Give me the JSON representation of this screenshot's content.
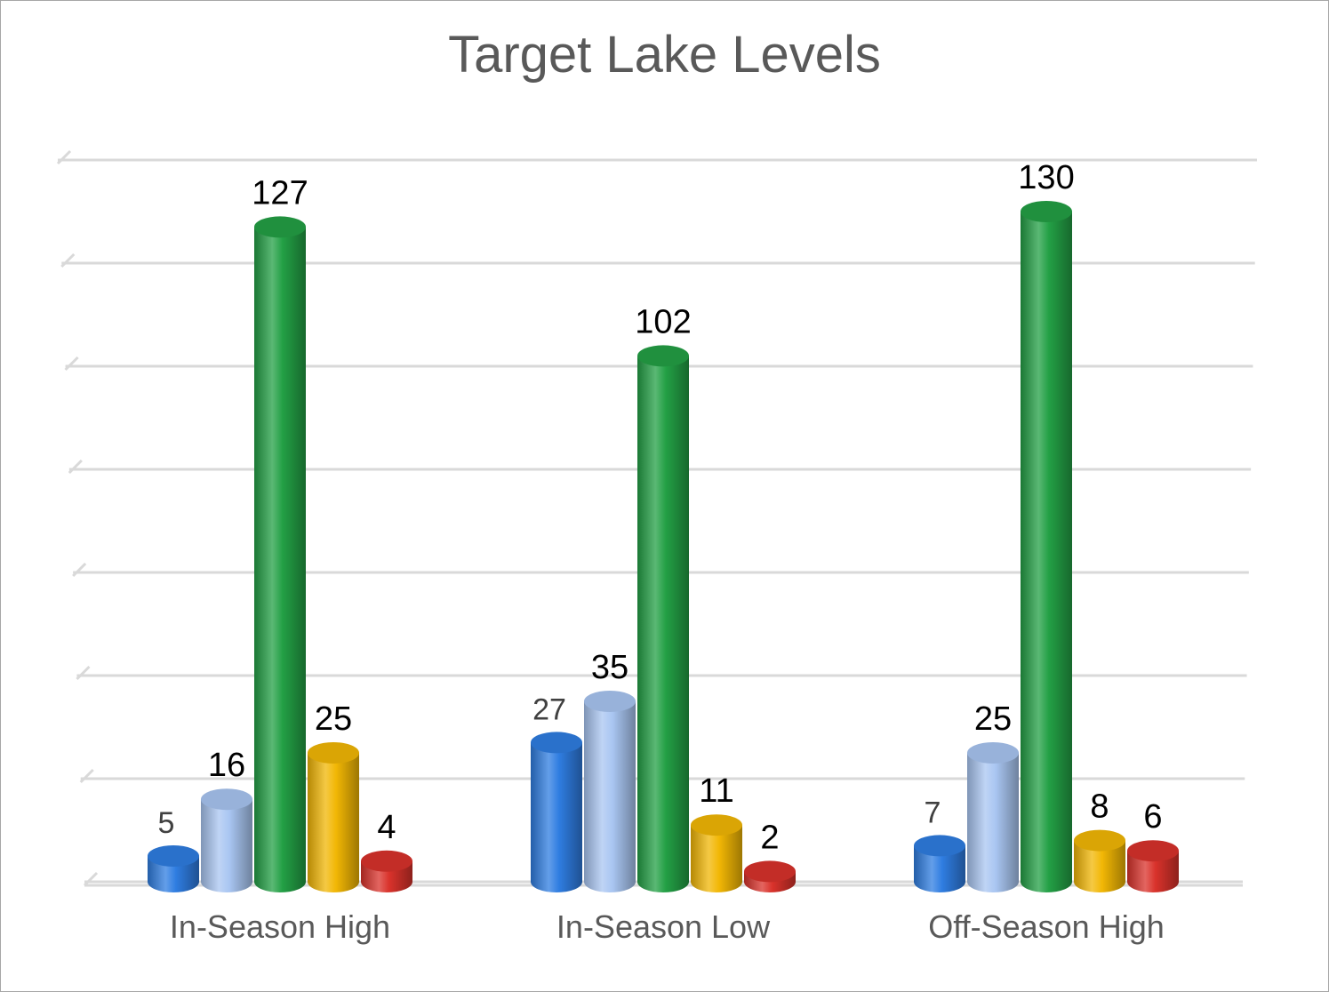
{
  "chart_data": {
    "type": "bar",
    "title": "Target Lake Levels",
    "categories": [
      "In-Season High",
      "In-Season Low",
      "Off-Season High"
    ],
    "series": [
      {
        "values": [
          5,
          27,
          7
        ],
        "color": "#2f7de1"
      },
      {
        "values": [
          16,
          35,
          25
        ],
        "color": "#a9c6f2"
      },
      {
        "values": [
          127,
          102,
          130
        ],
        "color": "#23a045"
      },
      {
        "values": [
          25,
          11,
          8
        ],
        "color": "#f2b705"
      },
      {
        "values": [
          4,
          2,
          6
        ],
        "color": "#d9322b"
      }
    ],
    "ylim": [
      0,
      140
    ],
    "grid": true,
    "legend": "none",
    "style": "3d-cylinder"
  }
}
